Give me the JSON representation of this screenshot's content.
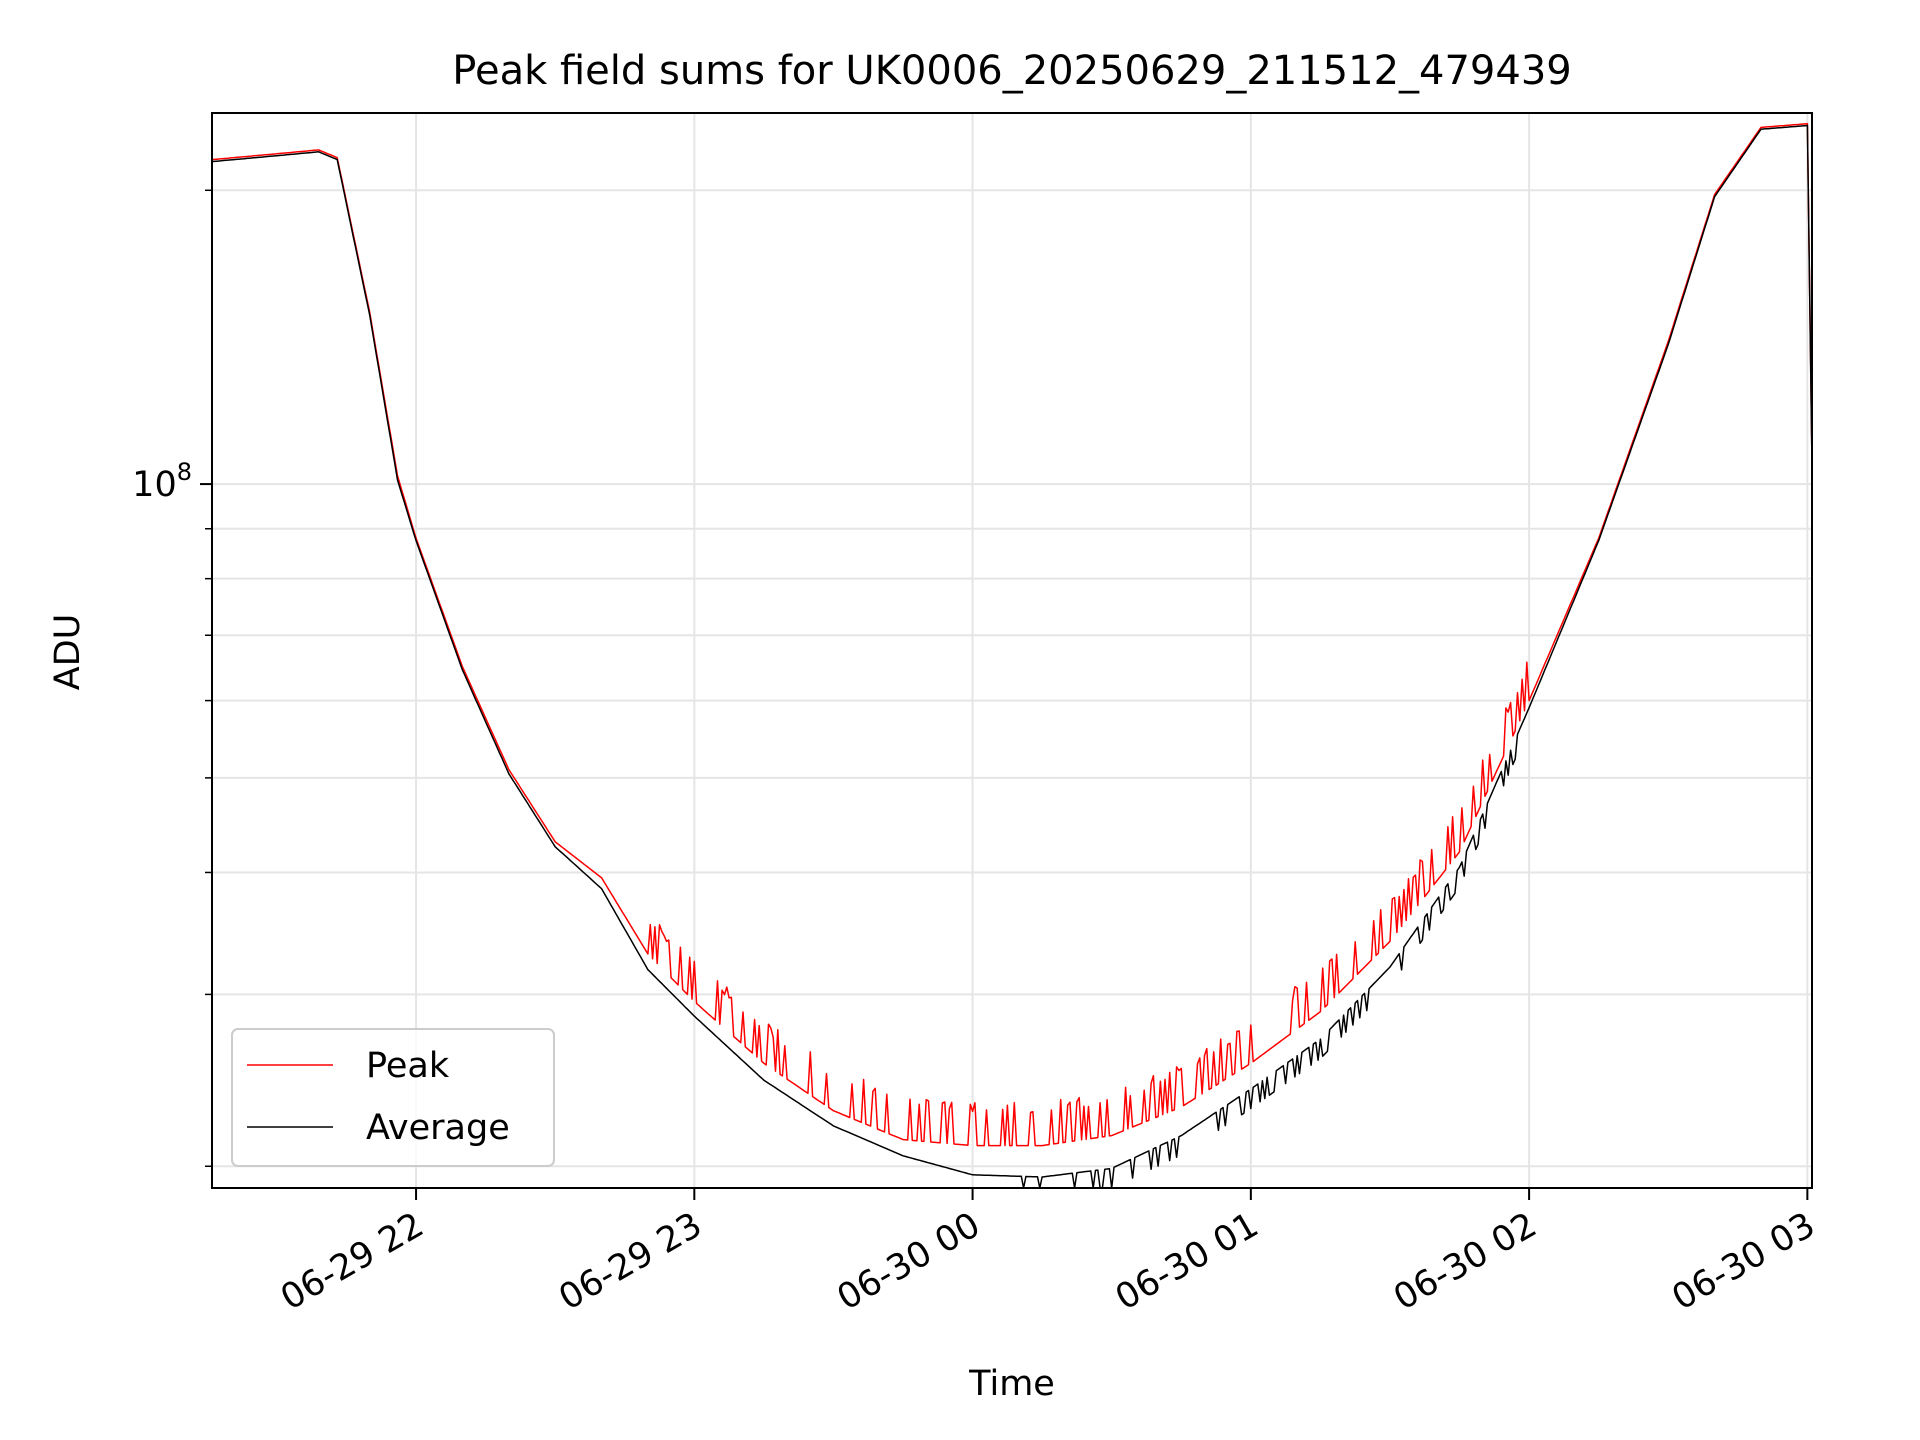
{
  "chart_data": {
    "type": "line",
    "title": "Peak field sums for UK0006_20250629_211512_479439",
    "xlabel": "Time",
    "ylabel": "ADU",
    "yscale": "log",
    "xlim": [
      "2025-06-29 21:16",
      "2025-06-30 03:01"
    ],
    "ylim": [
      19000000,
      240000000
    ],
    "x_ticks": [
      "06-29 22",
      "06-29 23",
      "06-30 00",
      "06-30 01",
      "06-30 02",
      "06-30 03"
    ],
    "y_tick_major": {
      "base": "10",
      "exponent": "8"
    },
    "grid": true,
    "legend_position": "lower-left",
    "series": [
      {
        "name": "Peak",
        "color": "#ff0000",
        "x": [
          "2025-06-29 21:16",
          "2025-06-29 21:30",
          "2025-06-29 21:39",
          "2025-06-29 21:43",
          "2025-06-29 21:50",
          "2025-06-29 21:56",
          "2025-06-29 22:00",
          "2025-06-29 22:10",
          "2025-06-29 22:20",
          "2025-06-29 22:30",
          "2025-06-29 22:40",
          "2025-06-29 22:50",
          "2025-06-29 23:00",
          "2025-06-29 23:15",
          "2025-06-29 23:30",
          "2025-06-29 23:45",
          "2025-06-30 00:00",
          "2025-06-30 00:15",
          "2025-06-30 00:30",
          "2025-06-30 00:45",
          "2025-06-30 01:00",
          "2025-06-30 01:15",
          "2025-06-30 01:30",
          "2025-06-30 01:45",
          "2025-06-30 02:00",
          "2025-06-30 02:15",
          "2025-06-30 02:30",
          "2025-06-30 02:40",
          "2025-06-30 02:50",
          "2025-06-30 03:00",
          "2025-06-30 03:01"
        ],
        "y": [
          215000000,
          218000000,
          220000000,
          216000000,
          150000000,
          102000000,
          88000000,
          65000000,
          51000000,
          43000000,
          39500000,
          33000000,
          29500000,
          25500000,
          22800000,
          21300000,
          21000000,
          21000000,
          21500000,
          23000000,
          25500000,
          28800000,
          34000000,
          42000000,
          60000000,
          88000000,
          140000000,
          198000000,
          232000000,
          234000000,
          105000000
        ]
      },
      {
        "name": "Average",
        "color": "#000000",
        "x": [
          "2025-06-29 21:16",
          "2025-06-29 21:30",
          "2025-06-29 21:39",
          "2025-06-29 21:43",
          "2025-06-29 21:50",
          "2025-06-29 21:56",
          "2025-06-29 22:00",
          "2025-06-29 22:10",
          "2025-06-29 22:20",
          "2025-06-29 22:30",
          "2025-06-29 22:40",
          "2025-06-29 22:50",
          "2025-06-29 23:00",
          "2025-06-29 23:15",
          "2025-06-29 23:30",
          "2025-06-29 23:45",
          "2025-06-30 00:00",
          "2025-06-30 00:15",
          "2025-06-30 00:30",
          "2025-06-30 00:45",
          "2025-06-30 01:00",
          "2025-06-30 01:15",
          "2025-06-30 01:30",
          "2025-06-30 01:45",
          "2025-06-30 02:00",
          "2025-06-30 02:15",
          "2025-06-30 02:30",
          "2025-06-30 02:40",
          "2025-06-30 02:50",
          "2025-06-30 03:00",
          "2025-06-30 03:01"
        ],
        "y": [
          214000000,
          217000000,
          219000000,
          215000000,
          149000000,
          101000000,
          87500000,
          64500000,
          50500000,
          42500000,
          38500000,
          31800000,
          28500000,
          24500000,
          22000000,
          20500000,
          19600000,
          19500000,
          19900000,
          21500000,
          24000000,
          27000000,
          32000000,
          40500000,
          59000000,
          87500000,
          139000000,
          197000000,
          231000000,
          233000000,
          104000000
        ]
      }
    ]
  }
}
